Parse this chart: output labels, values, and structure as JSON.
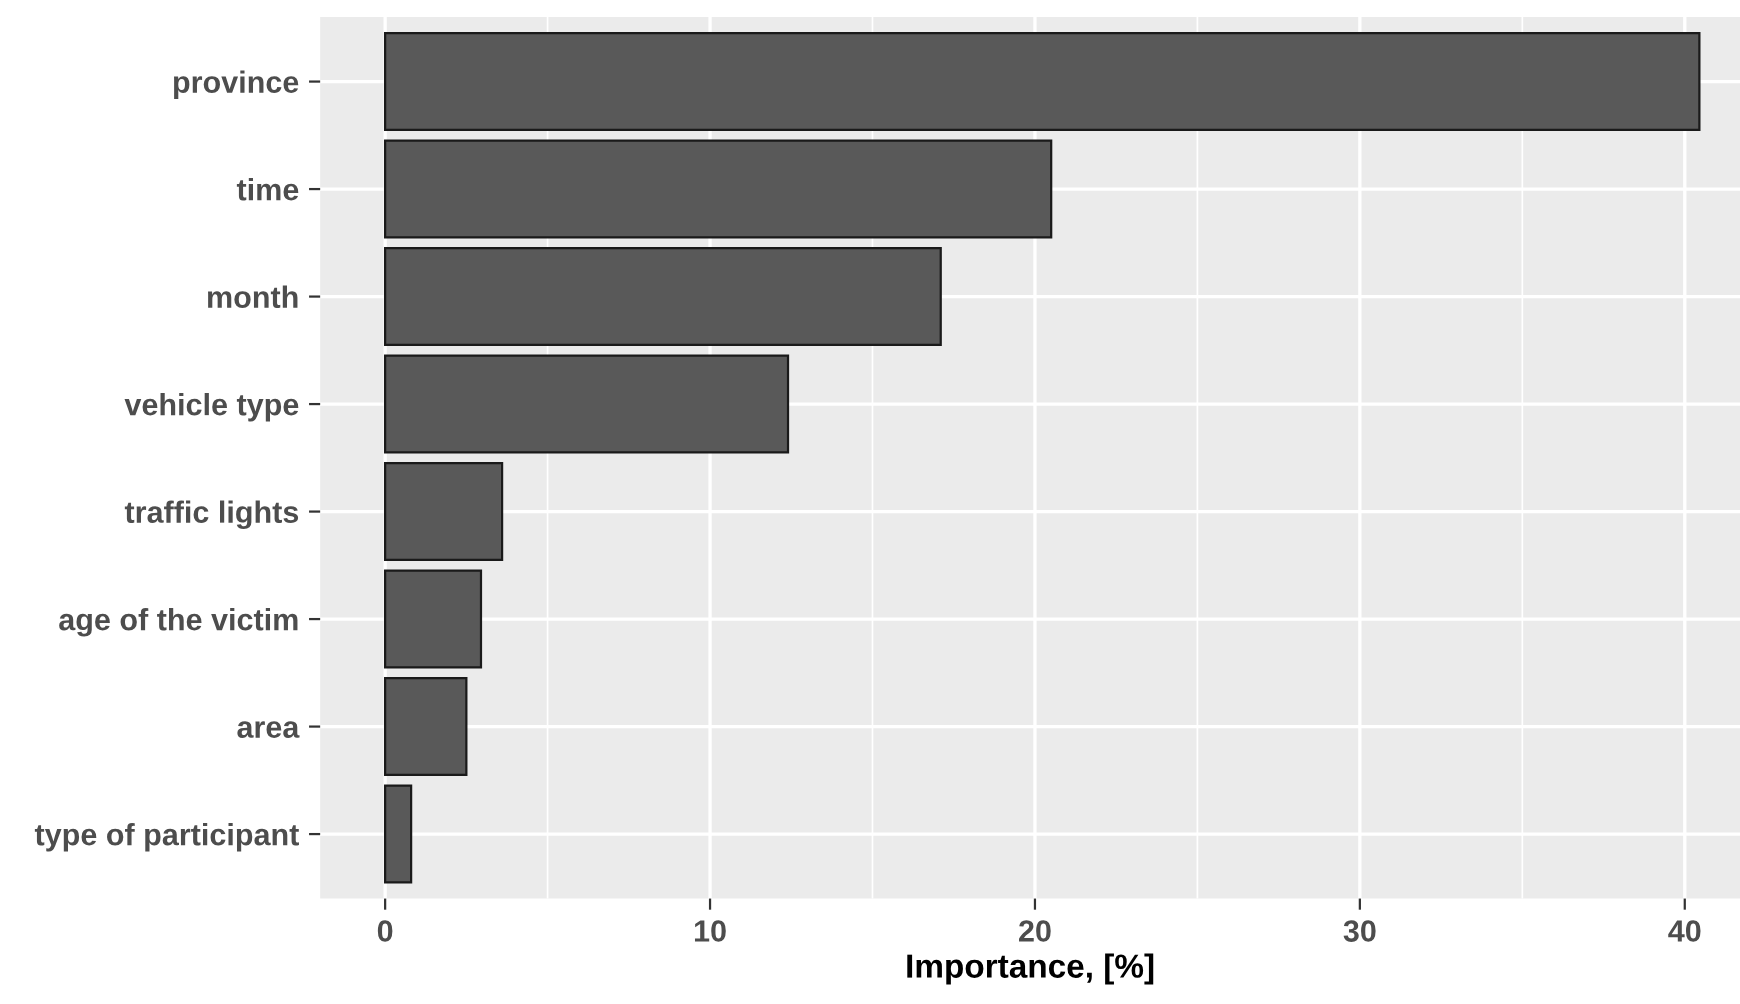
{
  "chart_data": {
    "type": "bar",
    "orientation": "horizontal",
    "xlabel": "Importance, [%]",
    "categories": [
      "province",
      "time",
      "month",
      "vehicle type",
      "traffic lights",
      "age of the victim",
      "area",
      "type of participant"
    ],
    "values": [
      40.45,
      20.5,
      17.1,
      12.4,
      3.6,
      2.95,
      2.5,
      0.8
    ],
    "color": "#595959",
    "xlim": [
      -2.0,
      41.7
    ],
    "xticks": [
      0,
      10,
      20,
      30,
      40
    ],
    "grid": true
  }
}
